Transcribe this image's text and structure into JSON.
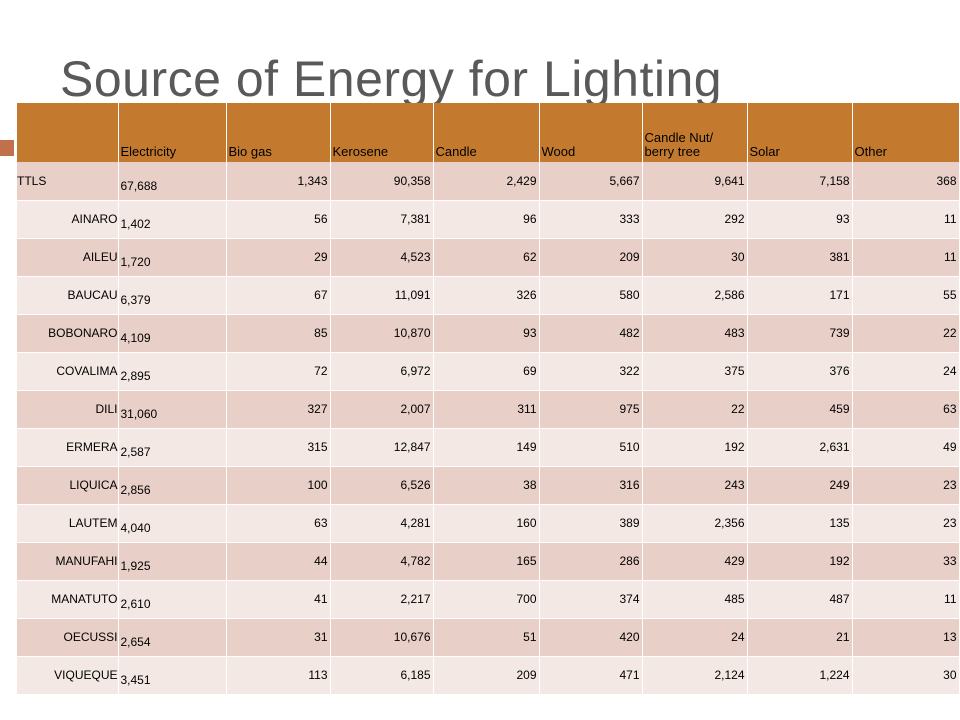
{
  "title": "Source of Energy for Lighting",
  "accent_color": "#c47a2e",
  "table": {
    "headers": [
      "",
      "Electricity",
      "Bio gas",
      "Kerosene",
      "Candle",
      "Wood",
      "Candle Nut/ berry tree",
      "Solar",
      "Other"
    ],
    "rows": [
      {
        "region": "TTLS",
        "values": [
          "67,688",
          "1,343",
          "90,358",
          "2,429",
          "5,667",
          "9,641",
          "7,158",
          "368"
        ]
      },
      {
        "region": "AINARO",
        "values": [
          "1,402",
          "56",
          "7,381",
          "96",
          "333",
          "292",
          "93",
          "11"
        ]
      },
      {
        "region": "AILEU",
        "values": [
          "1,720",
          "29",
          "4,523",
          "62",
          "209",
          "30",
          "381",
          "11"
        ]
      },
      {
        "region": "BAUCAU",
        "values": [
          "6,379",
          "67",
          "11,091",
          "326",
          "580",
          "2,586",
          "171",
          "55"
        ]
      },
      {
        "region": "BOBONARO",
        "values": [
          "4,109",
          "85",
          "10,870",
          "93",
          "482",
          "483",
          "739",
          "22"
        ]
      },
      {
        "region": "COVALIMA",
        "values": [
          "2,895",
          "72",
          "6,972",
          "69",
          "322",
          "375",
          "376",
          "24"
        ]
      },
      {
        "region": "DILI",
        "values": [
          "31,060",
          "327",
          "2,007",
          "311",
          "975",
          "22",
          "459",
          "63"
        ]
      },
      {
        "region": "ERMERA",
        "values": [
          "2,587",
          "315",
          "12,847",
          "149",
          "510",
          "192",
          "2,631",
          "49"
        ]
      },
      {
        "region": "LIQUICA",
        "values": [
          "2,856",
          "100",
          "6,526",
          "38",
          "316",
          "243",
          "249",
          "23"
        ]
      },
      {
        "region": "LAUTEM",
        "values": [
          "4,040",
          "63",
          "4,281",
          "160",
          "389",
          "2,356",
          "135",
          "23"
        ]
      },
      {
        "region": "MANUFAHI",
        "values": [
          "1,925",
          "44",
          "4,782",
          "165",
          "286",
          "429",
          "192",
          "33"
        ]
      },
      {
        "region": "MANATUTO",
        "values": [
          "2,610",
          "41",
          "2,217",
          "700",
          "374",
          "485",
          "487",
          "11"
        ]
      },
      {
        "region": "OECUSSI",
        "values": [
          "2,654",
          "31",
          "10,676",
          "51",
          "420",
          "24",
          "21",
          "13"
        ]
      },
      {
        "region": "VIQUEQUE",
        "values": [
          "3,451",
          "113",
          "6,185",
          "209",
          "471",
          "2,124",
          "1,224",
          "30"
        ]
      }
    ]
  }
}
